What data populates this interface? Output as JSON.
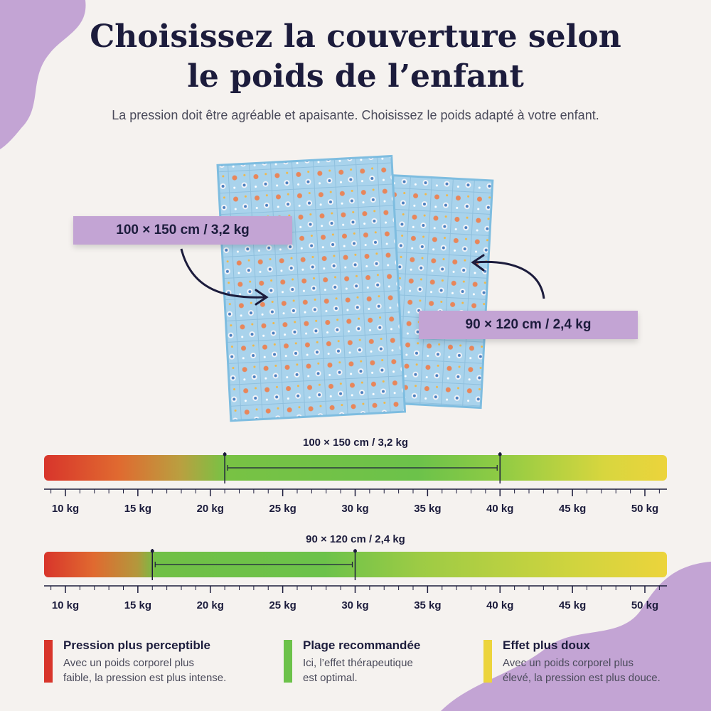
{
  "title_line1": "Choisissez la couverture selon",
  "title_line2": "le poids de l’enfant",
  "subtitle": "La pression doit être agréable et apaisante. Choisissez le poids adapté à votre enfant.",
  "product_labels": {
    "large": "100 × 150 cm / 3,2 kg",
    "small": "90 × 120 cm / 2,4 kg"
  },
  "chart_data": [
    {
      "type": "bar",
      "title": "100 × 150 cm / 3,2 kg",
      "x_ticks": [
        "10 kg",
        "15 kg",
        "20 kg",
        "25 kg",
        "30 kg",
        "35 kg",
        "40 kg",
        "45 kg",
        "50 kg"
      ],
      "xlim": [
        10,
        50
      ],
      "recommended_range": [
        21,
        40
      ],
      "colors": [
        "#d8352b",
        "#6cc24a",
        "#ecd43c"
      ]
    },
    {
      "type": "bar",
      "title": "90 × 120 cm / 2,4 kg",
      "x_ticks": [
        "10 kg",
        "15 kg",
        "20 kg",
        "25 kg",
        "30 kg",
        "35 kg",
        "40 kg",
        "45 kg",
        "50 kg"
      ],
      "xlim": [
        10,
        50
      ],
      "recommended_range": [
        16,
        30
      ],
      "colors": [
        "#d8352b",
        "#6cc24a",
        "#ecd43c"
      ]
    }
  ],
  "legend": [
    {
      "title": "Pression plus perceptible",
      "line1": "Avec un poids corporel plus",
      "line2": "faible, la pression est plus intense.",
      "color": "#d8352b"
    },
    {
      "title": "Plage recommandée",
      "line1": "Ici, l’effet thérapeutique",
      "line2": "est optimal.",
      "color": "#6cc24a"
    },
    {
      "title": "Effet plus doux",
      "line1": "Avec un poids corporel plus",
      "line2": "élevé, la pression est plus douce.",
      "color": "#ecd43c"
    }
  ],
  "colors": {
    "accent": "#c3a4d4",
    "background": "#f5f2ef",
    "text": "#1c1c3c"
  }
}
